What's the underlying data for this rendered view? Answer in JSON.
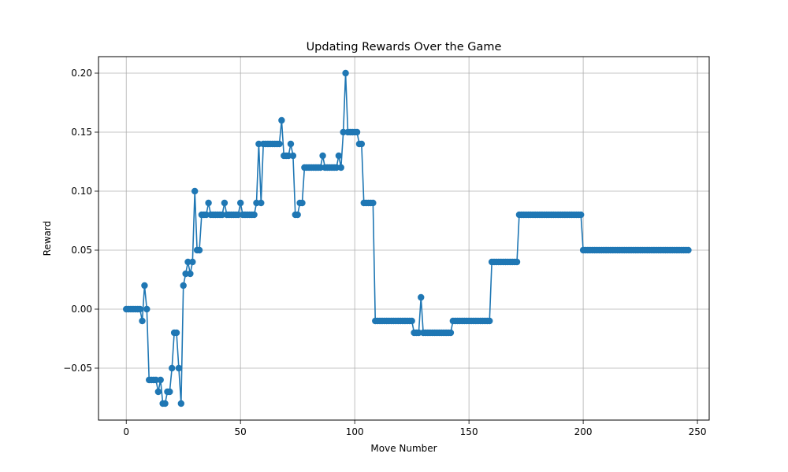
{
  "chart_data": {
    "type": "line",
    "title": "Updating Rewards Over the Game",
    "xlabel": "Move Number",
    "ylabel": "Reward",
    "xlim": [
      -12.15,
      255.15
    ],
    "ylim": [
      -0.094,
      0.214
    ],
    "xticks": [
      0,
      50,
      100,
      150,
      200,
      250
    ],
    "yticks": [
      -0.05,
      0.0,
      0.05,
      0.1,
      0.15,
      0.2
    ],
    "xtick_labels": [
      "0",
      "50",
      "100",
      "150",
      "200",
      "250"
    ],
    "ytick_labels": [
      "−0.05",
      "0.00",
      "0.05",
      "0.10",
      "0.15",
      "0.20"
    ],
    "grid": true,
    "marker": "circle",
    "color": "#1f77b4",
    "series": [
      {
        "values": [
          0.0,
          0.0,
          0.0,
          0.0,
          0.0,
          0.0,
          0.0,
          -0.01,
          0.02,
          0.0,
          -0.06,
          -0.06,
          -0.06,
          -0.06,
          -0.07,
          -0.06,
          -0.08,
          -0.08,
          -0.07,
          -0.07,
          -0.05,
          -0.02,
          -0.02,
          -0.05,
          -0.08,
          0.02,
          0.03,
          0.04,
          0.03,
          0.04,
          0.1,
          0.05,
          0.05,
          0.08,
          0.08,
          0.08,
          0.09,
          0.08,
          0.08,
          0.08,
          0.08,
          0.08,
          0.08,
          0.09,
          0.08,
          0.08,
          0.08,
          0.08,
          0.08,
          0.08,
          0.09,
          0.08,
          0.08,
          0.08,
          0.08,
          0.08,
          0.08,
          0.09,
          0.14,
          0.09,
          0.14,
          0.14,
          0.14,
          0.14,
          0.14,
          0.14,
          0.14,
          0.14,
          0.16,
          0.13,
          0.13,
          0.13,
          0.14,
          0.13,
          0.08,
          0.08,
          0.09,
          0.09,
          0.12,
          0.12,
          0.12,
          0.12,
          0.12,
          0.12,
          0.12,
          0.12,
          0.13,
          0.12,
          0.12,
          0.12,
          0.12,
          0.12,
          0.12,
          0.13,
          0.12,
          0.15,
          0.2,
          0.15,
          0.15,
          0.15,
          0.15,
          0.15,
          0.14,
          0.14,
          0.09,
          0.09,
          0.09,
          0.09,
          0.09,
          -0.01,
          -0.01,
          -0.01,
          -0.01,
          -0.01,
          -0.01,
          -0.01,
          -0.01,
          -0.01,
          -0.01,
          -0.01,
          -0.01,
          -0.01,
          -0.01,
          -0.01,
          -0.01,
          -0.01,
          -0.02,
          -0.02,
          -0.02,
          0.01,
          -0.02,
          -0.02,
          -0.02,
          -0.02,
          -0.02,
          -0.02,
          -0.02,
          -0.02,
          -0.02,
          -0.02,
          -0.02,
          -0.02,
          -0.02,
          -0.01,
          -0.01,
          -0.01,
          -0.01,
          -0.01,
          -0.01,
          -0.01,
          -0.01,
          -0.01,
          -0.01,
          -0.01,
          -0.01,
          -0.01,
          -0.01,
          -0.01,
          -0.01,
          -0.01,
          0.04,
          0.04,
          0.04,
          0.04,
          0.04,
          0.04,
          0.04,
          0.04,
          0.04,
          0.04,
          0.04,
          0.04,
          0.08,
          0.08,
          0.08,
          0.08,
          0.08,
          0.08,
          0.08,
          0.08,
          0.08,
          0.08,
          0.08,
          0.08,
          0.08,
          0.08,
          0.08,
          0.08,
          0.08,
          0.08,
          0.08,
          0.08,
          0.08,
          0.08,
          0.08,
          0.08,
          0.08,
          0.08,
          0.08,
          0.08,
          0.05,
          0.05,
          0.05,
          0.05,
          0.05,
          0.05,
          0.05,
          0.05,
          0.05,
          0.05,
          0.05,
          0.05,
          0.05,
          0.05,
          0.05,
          0.05,
          0.05,
          0.05,
          0.05,
          0.05,
          0.05,
          0.05,
          0.05,
          0.05,
          0.05,
          0.05,
          0.05,
          0.05,
          0.05,
          0.05,
          0.05,
          0.05,
          0.05,
          0.05,
          0.05,
          0.05,
          0.05,
          0.05,
          0.05,
          0.05,
          0.05,
          0.05,
          0.05,
          0.05,
          0.05,
          0.05,
          0.05
        ]
      }
    ]
  }
}
